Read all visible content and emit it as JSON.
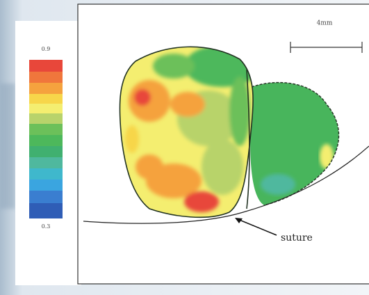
{
  "colorbar": {
    "max_label": "0.9",
    "min_label": "0.3"
  },
  "scale_bar": {
    "label": "4mm"
  },
  "annotation": {
    "label": "suture"
  }
}
